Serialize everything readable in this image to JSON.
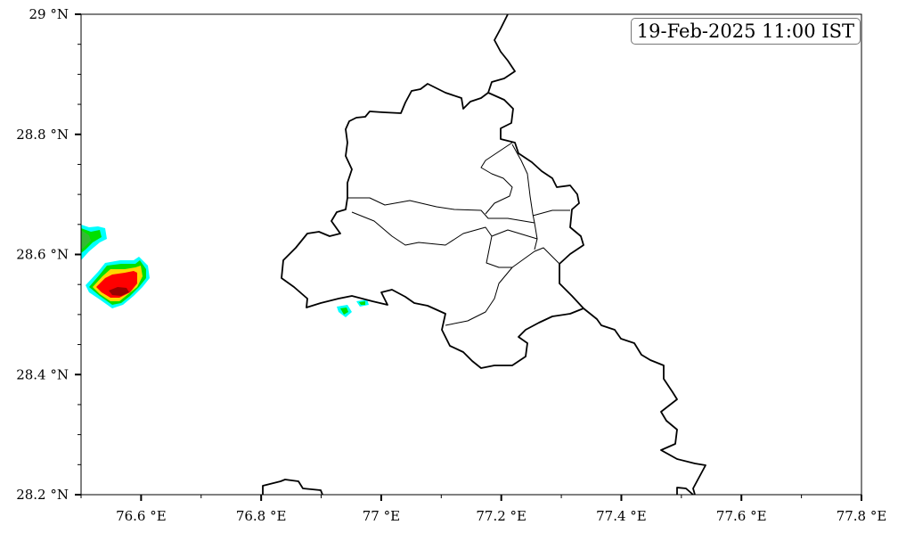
{
  "map": {
    "timestamp": "19-Feb-2025 11:00 IST",
    "lon_ticks": [
      "76.6 °E",
      "76.8 °E",
      "77 °E",
      "77.2 °E",
      "77.4 °E",
      "77.6 °E",
      "77.8 °E"
    ],
    "lat_ticks": [
      "29 °N",
      "28.8 °N",
      "28.6 °N",
      "28.4 °N",
      "28.2 °N"
    ],
    "lon_range": [
      76.5,
      77.8
    ],
    "lat_range": [
      28.2,
      29.0
    ],
    "intensity_colors": [
      "#00ffff",
      "#00e000",
      "#33bb33",
      "#ffd700",
      "#ff0000",
      "#990000"
    ]
  }
}
